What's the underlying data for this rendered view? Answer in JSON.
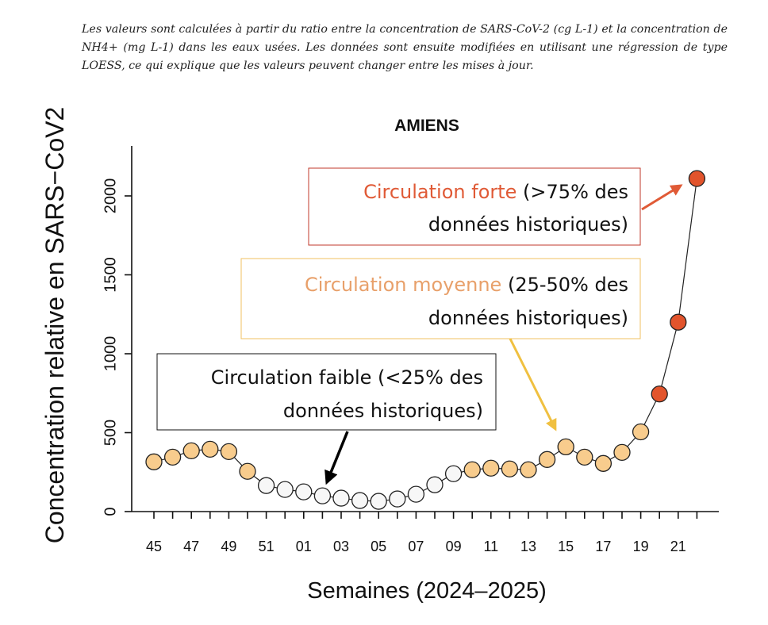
{
  "caption": "Les valeurs sont calculées à partir du ratio entre la concentration de SARS-CoV-2 (cg L-1) et la concentration de NH4+ (mg L-1) dans les eaux usées. Les données sont ensuite modifiées en utilisant une régression de type LOESS, ce qui explique que les valeurs peuvent changer entre les mises à jour.",
  "chart_data": {
    "type": "scatter",
    "title": "AMIENS",
    "xlabel": "Semaines (2024–2025)",
    "ylabel": "Concentration relative en SARS−CoV2",
    "ylim": [
      0,
      2300
    ],
    "yticks": [
      0,
      500,
      1000,
      1500,
      2000
    ],
    "xtick_labels": [
      "45",
      "47",
      "49",
      "51",
      "01",
      "03",
      "05",
      "07",
      "09",
      "11",
      "13",
      "15",
      "17",
      "19",
      "21"
    ],
    "grid": false,
    "connected_line": true,
    "colors": {
      "faible": "#f7f7f7",
      "moyenne": "#f8cc8d",
      "forte": "#e2542c",
      "outline": "#222222",
      "annotation_forte": "#e05a36",
      "annotation_moyenne": "#e8a06a",
      "border_moyenne": "#f0c060",
      "arrow_moyenne": "#f0c040",
      "arrow_faible": "#000000"
    },
    "series": [
      {
        "weeks": [
          "45",
          "46",
          "47",
          "48",
          "49",
          "50",
          "51",
          "52",
          "01",
          "02",
          "03",
          "04",
          "05",
          "06",
          "07",
          "08",
          "09",
          "10",
          "11",
          "12",
          "13",
          "14",
          "15",
          "16",
          "17",
          "18",
          "19",
          "20",
          "21",
          "22"
        ],
        "values": [
          315,
          345,
          385,
          395,
          380,
          255,
          165,
          140,
          125,
          100,
          85,
          70,
          65,
          80,
          110,
          170,
          240,
          265,
          275,
          270,
          265,
          330,
          410,
          345,
          305,
          375,
          505,
          745,
          1200,
          2110
        ],
        "level": [
          "moyenne",
          "moyenne",
          "moyenne",
          "moyenne",
          "moyenne",
          "moyenne",
          "faible",
          "faible",
          "faible",
          "faible",
          "faible",
          "faible",
          "faible",
          "faible",
          "faible",
          "faible",
          "faible",
          "moyenne",
          "moyenne",
          "moyenne",
          "moyenne",
          "moyenne",
          "moyenne",
          "moyenne",
          "moyenne",
          "moyenne",
          "moyenne",
          "forte",
          "forte",
          "forte"
        ]
      }
    ],
    "annotations": [
      {
        "name": "forte",
        "colored": "Circulation forte",
        "line1_rest": " (>75% des",
        "line2": "données historiques)"
      },
      {
        "name": "moyenne",
        "colored": "Circulation moyenne",
        "line1_rest": " (25-50% des",
        "line2": "données historiques)"
      },
      {
        "name": "faible",
        "colored": "",
        "line1_rest": "Circulation faible (<25% des",
        "line2": "données historiques)"
      }
    ]
  }
}
